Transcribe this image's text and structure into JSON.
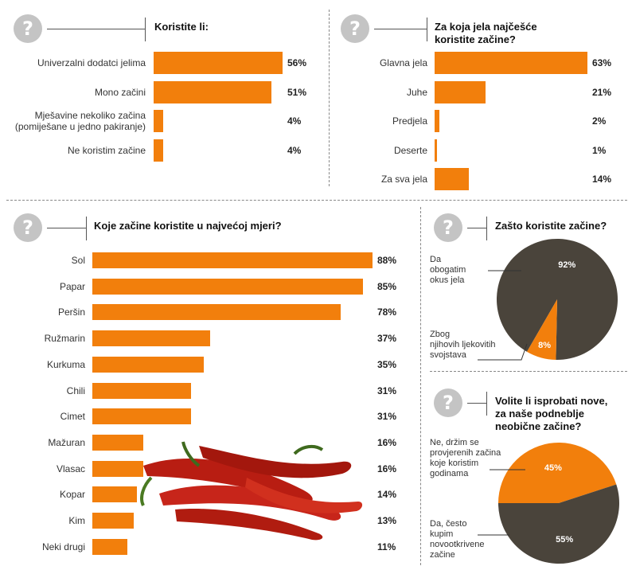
{
  "chart_data": [
    {
      "type": "bar",
      "title": "Koristite li:",
      "categories": [
        "Univerzalni dodatci jelima",
        "Mono začini",
        "Mješavine nekoliko začina\n(pomiješane u jedno pakiranje)",
        "Ne koristim začine"
      ],
      "values": [
        56,
        51,
        4,
        4
      ],
      "value_labels": [
        "56%",
        "51%",
        "4%",
        "4%"
      ],
      "xlim": [
        0,
        100
      ],
      "color": "#f27f0c"
    },
    {
      "type": "bar",
      "title": "Za koja jela najčešće\nkoristite začine?",
      "categories": [
        "Glavna jela",
        "Juhe",
        "Predjela",
        "Deserte",
        "Za sva jela"
      ],
      "values": [
        63,
        21,
        2,
        1,
        14
      ],
      "value_labels": [
        "63%",
        "21%",
        "2%",
        "1%",
        "14%"
      ],
      "xlim": [
        0,
        100
      ],
      "color": "#f27f0c"
    },
    {
      "type": "bar",
      "title": "Koje začine koristite u najvećoj mjeri?",
      "categories": [
        "Sol",
        "Papar",
        "Peršin",
        "Ružmarin",
        "Kurkuma",
        "Chili",
        "Cimet",
        "Mažuran",
        "Vlasac",
        "Kopar",
        "Kim",
        "Neki drugi"
      ],
      "values": [
        88,
        85,
        78,
        37,
        35,
        31,
        31,
        16,
        16,
        14,
        13,
        11
      ],
      "value_labels": [
        "88%",
        "85%",
        "78%",
        "37%",
        "35%",
        "31%",
        "31%",
        "16%",
        "16%",
        "14%",
        "13%",
        "11%"
      ],
      "xlim": [
        0,
        100
      ],
      "color": "#f27f0c"
    },
    {
      "type": "pie",
      "title": "Zašto koristite začine?",
      "slices": [
        {
          "label": "Da\nobogatim\nokus jela",
          "value": 92,
          "value_label": "92%",
          "color": "#4a443b"
        },
        {
          "label": "Zbog\nnjihovih ljekovitih\nsvojstava",
          "value": 8,
          "value_label": "8%",
          "color": "#f27f0c"
        }
      ]
    },
    {
      "type": "pie",
      "title": "Volite li isprobati nove,\nza naše podneblje\nneobične začine?",
      "slices": [
        {
          "label": "Ne, držim se\nprovjerenih začina\nkoje koristim\ngodinama",
          "value": 45,
          "value_label": "45%",
          "color": "#f27f0c"
        },
        {
          "label": "Da, često\nkupim\nnovootkrivene\nzačine",
          "value": 55,
          "value_label": "55%",
          "color": "#4a443b"
        }
      ]
    }
  ],
  "icons": {
    "question": "question-mark-icon",
    "glyph": "?",
    "decor": "chili-peppers-illustration"
  }
}
